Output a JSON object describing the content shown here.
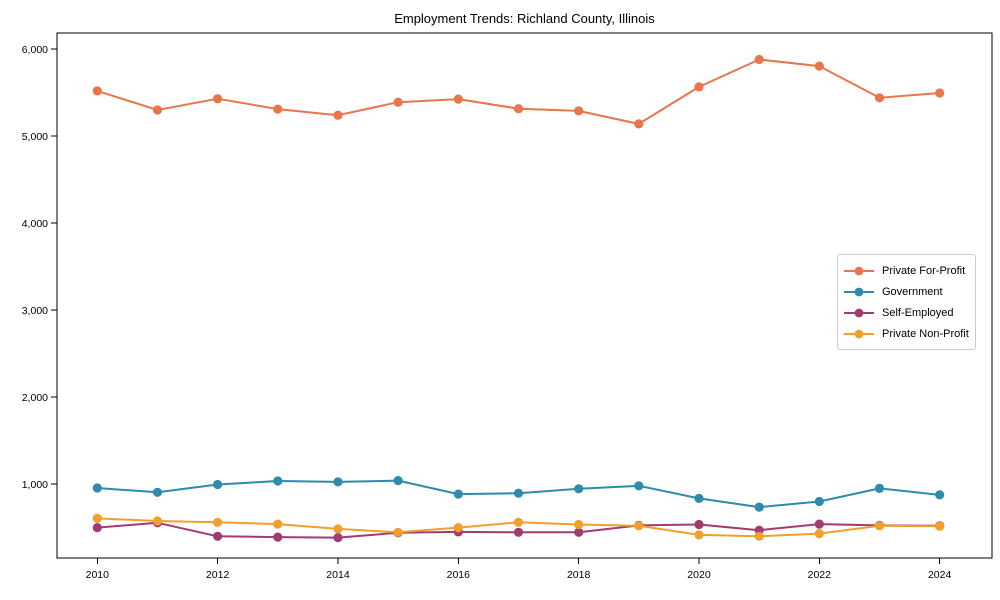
{
  "figure": {
    "background": "#ffffff",
    "spine_color": "#000000"
  },
  "chart_data": {
    "type": "line",
    "title": "Employment Trends: Richland County, Illinois",
    "xlabel": "",
    "ylabel": "",
    "grid": false,
    "marker": "circle",
    "legend_position": "right-middle",
    "x": [
      2010,
      2011,
      2012,
      2013,
      2014,
      2015,
      2016,
      2017,
      2018,
      2019,
      2020,
      2021,
      2022,
      2023,
      2024
    ],
    "series": [
      {
        "name": "Private For-Profit",
        "color": "#E8764A",
        "values": [
          5520,
          5300,
          5430,
          5310,
          5240,
          5390,
          5425,
          5315,
          5290,
          5140,
          5565,
          5880,
          5805,
          5440,
          5495
        ]
      },
      {
        "name": "Government",
        "color": "#2E8BAB",
        "values": [
          955,
          905,
          995,
          1035,
          1025,
          1040,
          885,
          895,
          945,
          980,
          835,
          735,
          800,
          950,
          875
        ]
      },
      {
        "name": "Self-Employed",
        "color": "#A23B72",
        "values": [
          500,
          555,
          400,
          390,
          385,
          440,
          450,
          445,
          445,
          525,
          535,
          470,
          540,
          525,
          520
        ]
      },
      {
        "name": "Private Non-Profit",
        "color": "#F0A02D",
        "values": [
          605,
          575,
          560,
          540,
          485,
          445,
          500,
          560,
          535,
          520,
          415,
          400,
          430,
          520,
          515
        ]
      }
    ],
    "xticks": [
      2010,
      2012,
      2014,
      2016,
      2018,
      2020,
      2022,
      2024
    ],
    "xtick_labels": [
      "2010",
      "2012",
      "2014",
      "2016",
      "2018",
      "2020",
      "2022",
      "2024"
    ],
    "yticks": [
      1000,
      2000,
      3000,
      4000,
      5000,
      6000
    ],
    "ytick_labels": [
      "1,000",
      "2,000",
      "3,000",
      "4,000",
      "5,000",
      "6,000"
    ],
    "xlim": [
      2009.33,
      2024.87
    ],
    "ylim": [
      150,
      6185
    ]
  }
}
